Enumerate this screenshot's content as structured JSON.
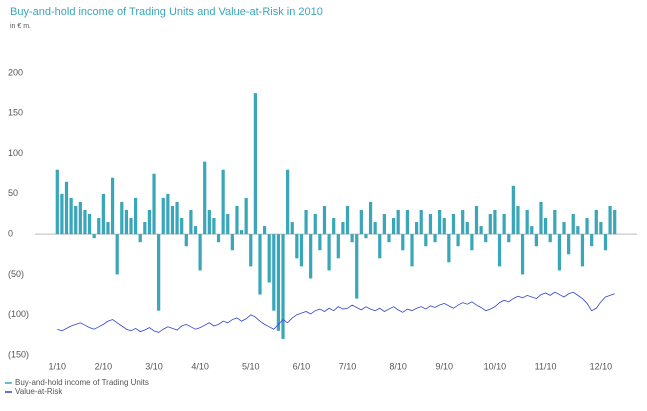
{
  "chart_data": {
    "type": "bar",
    "title": "Buy-and-hold income of Trading Units and Value-at-Risk in 2010",
    "subtitle": "in € m.",
    "categories": [
      "1/10",
      null,
      null,
      null,
      null,
      null,
      null,
      null,
      null,
      null,
      "2/10",
      null,
      null,
      null,
      null,
      null,
      null,
      null,
      null,
      null,
      null,
      "3/10",
      null,
      null,
      null,
      null,
      null,
      null,
      null,
      null,
      null,
      "4/10",
      null,
      null,
      null,
      null,
      null,
      null,
      null,
      null,
      null,
      null,
      "5/10",
      null,
      null,
      null,
      null,
      null,
      null,
      null,
      null,
      null,
      null,
      "6/10",
      null,
      null,
      null,
      null,
      null,
      null,
      null,
      null,
      null,
      "7/10",
      null,
      null,
      null,
      null,
      null,
      null,
      null,
      null,
      null,
      null,
      "8/10",
      null,
      null,
      null,
      null,
      null,
      null,
      null,
      null,
      null,
      "9/10",
      null,
      null,
      null,
      null,
      null,
      null,
      null,
      null,
      null,
      null,
      "10/10",
      null,
      null,
      null,
      null,
      null,
      null,
      null,
      null,
      null,
      null,
      "11/10",
      null,
      null,
      null,
      null,
      null,
      null,
      null,
      null,
      null,
      null,
      null,
      "12/10",
      null,
      null,
      null
    ],
    "series": [
      {
        "name": "Buy-and-hold income of Trading Units",
        "type": "bar",
        "color": "#3aa6b9",
        "values": [
          80,
          50,
          65,
          45,
          35,
          40,
          30,
          25,
          -5,
          20,
          50,
          15,
          70,
          -50,
          40,
          30,
          20,
          45,
          -10,
          15,
          30,
          75,
          -95,
          45,
          50,
          35,
          40,
          20,
          -15,
          30,
          10,
          -45,
          90,
          30,
          20,
          -10,
          80,
          25,
          -20,
          35,
          5,
          45,
          -40,
          175,
          -75,
          10,
          -60,
          -95,
          -120,
          -130,
          80,
          15,
          -30,
          -40,
          30,
          -55,
          25,
          -20,
          35,
          -45,
          20,
          -30,
          15,
          35,
          -10,
          -80,
          30,
          -5,
          40,
          15,
          -30,
          25,
          -10,
          20,
          30,
          -20,
          30,
          -40,
          15,
          30,
          -15,
          25,
          -10,
          30,
          20,
          -35,
          25,
          -15,
          30,
          15,
          -20,
          35,
          10,
          -10,
          25,
          30,
          -40,
          25,
          -10,
          60,
          35,
          -50,
          30,
          10,
          -15,
          40,
          20,
          -10,
          30,
          -45,
          15,
          -25,
          25,
          10,
          -40,
          20,
          -15,
          30,
          15,
          -20,
          35,
          30
        ]
      },
      {
        "name": "Value-at-Risk",
        "type": "line",
        "color": "#3344cc",
        "values": [
          -118,
          -120,
          -117,
          -114,
          -112,
          -110,
          -113,
          -116,
          -118,
          -115,
          -112,
          -108,
          -106,
          -110,
          -114,
          -118,
          -120,
          -117,
          -121,
          -119,
          -116,
          -120,
          -122,
          -118,
          -115,
          -117,
          -119,
          -114,
          -112,
          -115,
          -118,
          -116,
          -113,
          -110,
          -114,
          -112,
          -108,
          -110,
          -106,
          -104,
          -108,
          -105,
          -100,
          -103,
          -108,
          -112,
          -115,
          -118,
          -112,
          -106,
          -110,
          -104,
          -100,
          -98,
          -96,
          -99,
          -95,
          -93,
          -96,
          -92,
          -95,
          -90,
          -93,
          -92,
          -88,
          -91,
          -94,
          -90,
          -93,
          -95,
          -92,
          -96,
          -93,
          -90,
          -94,
          -97,
          -93,
          -95,
          -92,
          -90,
          -93,
          -89,
          -91,
          -88,
          -86,
          -89,
          -92,
          -88,
          -85,
          -87,
          -84,
          -88,
          -91,
          -95,
          -93,
          -90,
          -85,
          -82,
          -84,
          -80,
          -77,
          -79,
          -76,
          -78,
          -80,
          -75,
          -73,
          -76,
          -72,
          -75,
          -78,
          -74,
          -72,
          -76,
          -80,
          -86,
          -95,
          -92,
          -84,
          -78,
          -76,
          -74
        ]
      }
    ],
    "ylim": [
      -150,
      200
    ],
    "yticks": [
      {
        "value": -150,
        "label": "(150)"
      },
      {
        "value": -100,
        "label": "(100)"
      },
      {
        "value": -50,
        "label": "(50)"
      },
      0,
      50,
      100,
      150,
      200
    ]
  }
}
